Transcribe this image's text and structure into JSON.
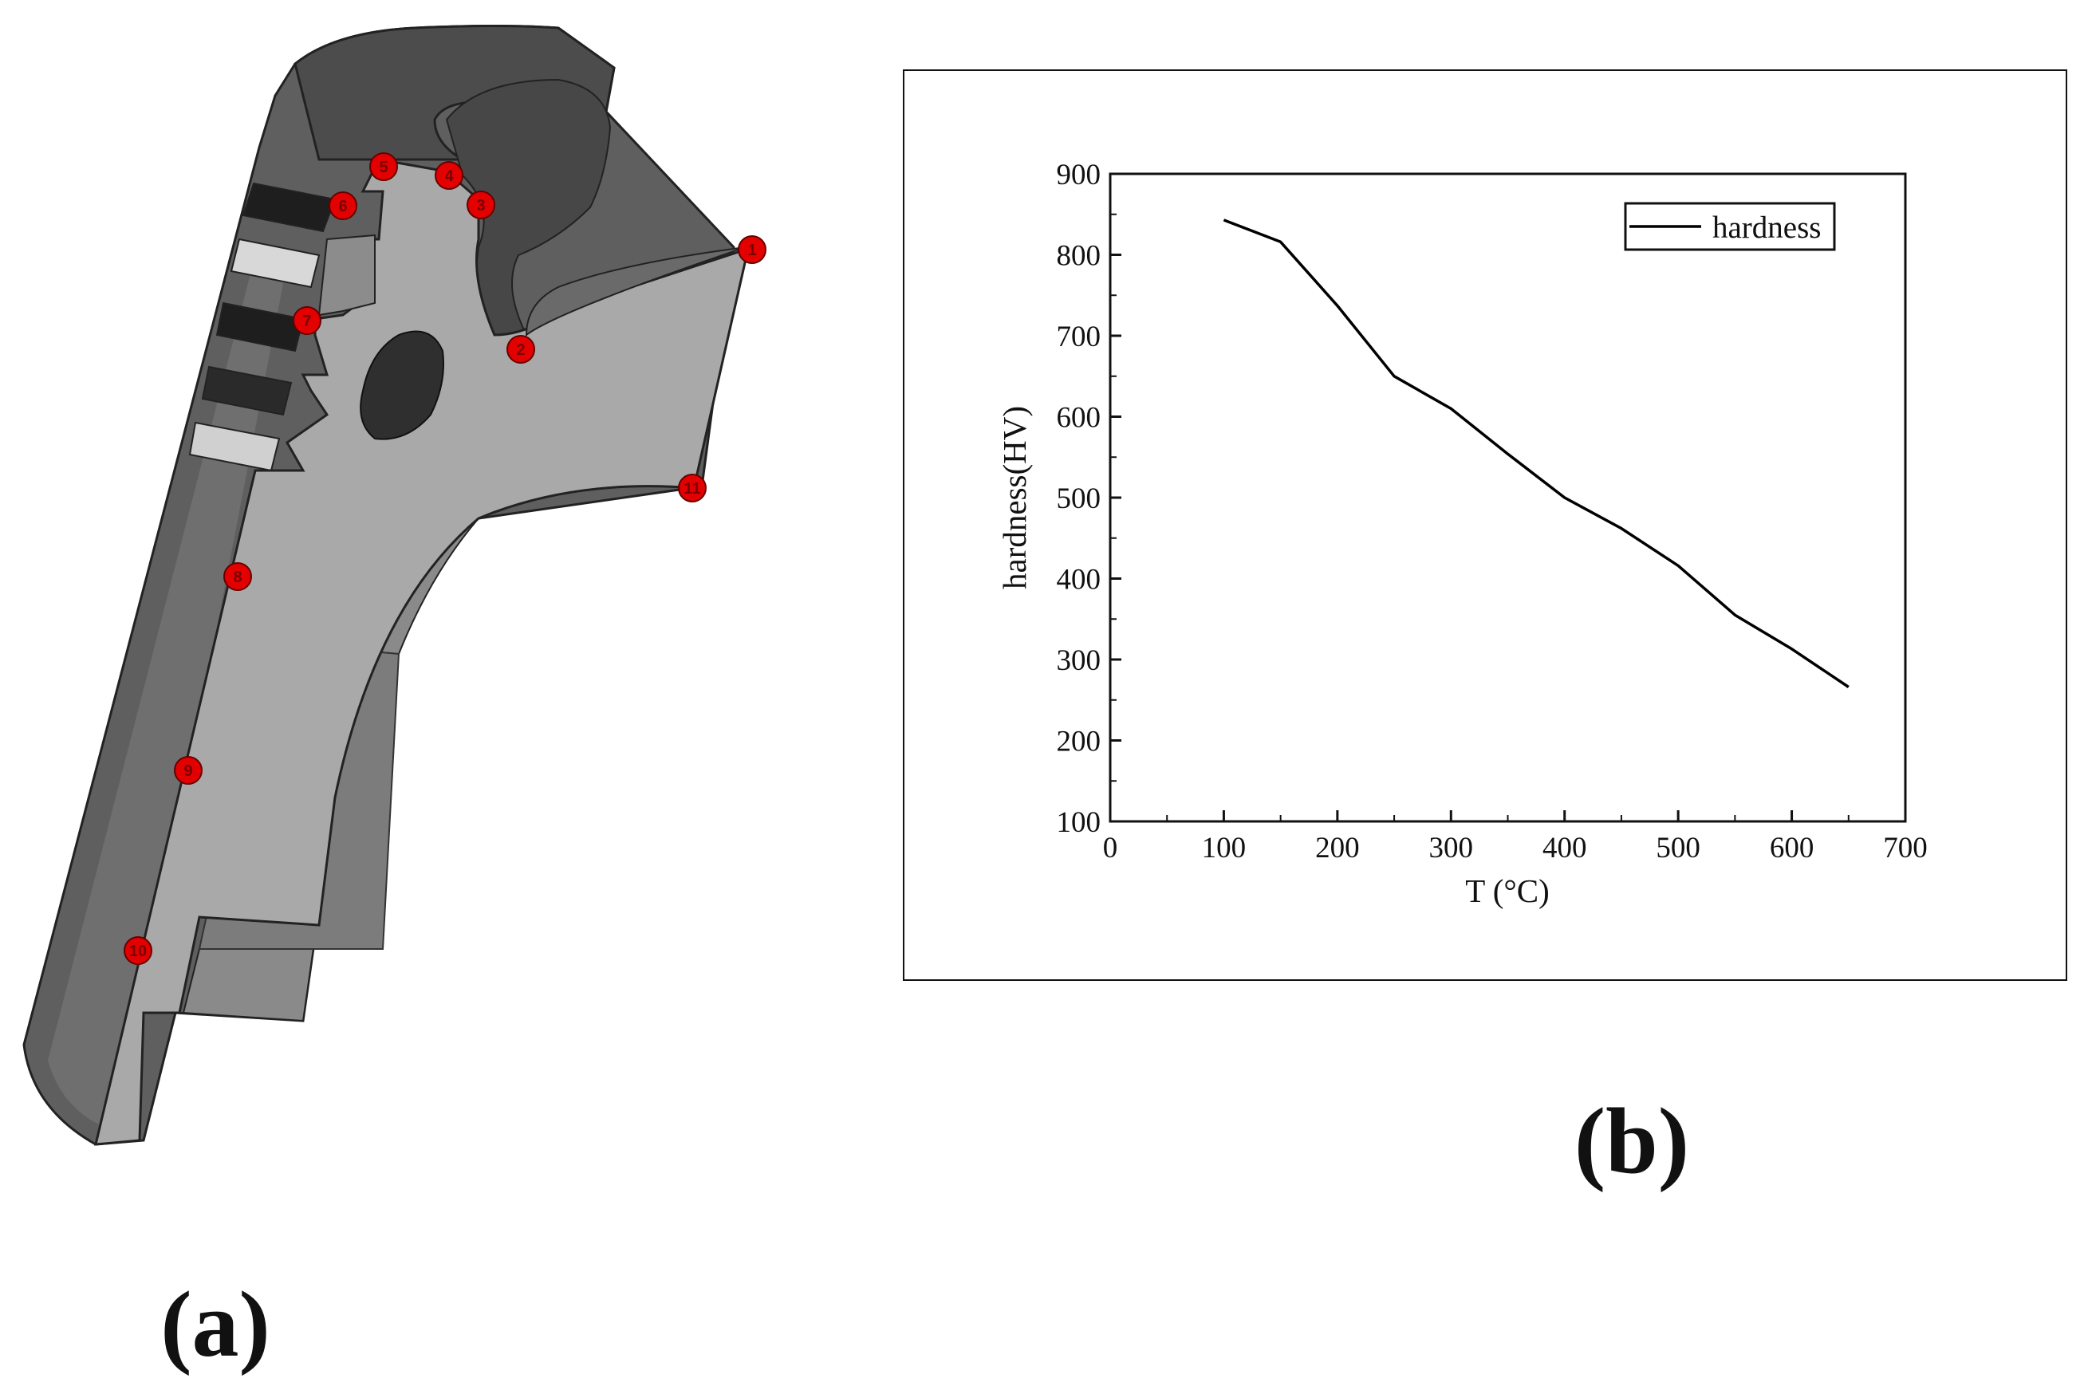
{
  "figure": {
    "panel_a_label": "(a)",
    "panel_b_label": "(b)",
    "measurement_points": [
      "1",
      "2",
      "3",
      "4",
      "5",
      "6",
      "7",
      "8",
      "9",
      "10",
      "11"
    ],
    "colors": {
      "section_face": "#a9a9a9",
      "body_dark": "#5e5e5e",
      "body_mid": "#7d7d7d",
      "marker": "#e30000",
      "line": "#000000"
    }
  },
  "chart_data": {
    "type": "line",
    "title": "",
    "xlabel": "T (°C)",
    "ylabel": "hardness(HV)",
    "xlim": [
      0,
      700
    ],
    "ylim": [
      100,
      900
    ],
    "xticks": [
      0,
      100,
      200,
      300,
      400,
      500,
      600,
      700
    ],
    "yticks": [
      100,
      200,
      300,
      400,
      500,
      600,
      700,
      800,
      900
    ],
    "grid": false,
    "legend_position": "top-right",
    "series": [
      {
        "name": "hardness",
        "x": [
          100,
          150,
          200,
          250,
          300,
          350,
          400,
          450,
          500,
          550,
          600,
          650
        ],
        "y": [
          843,
          816,
          737,
          650,
          610,
          554,
          500,
          462,
          416,
          355,
          313,
          266
        ]
      }
    ]
  }
}
